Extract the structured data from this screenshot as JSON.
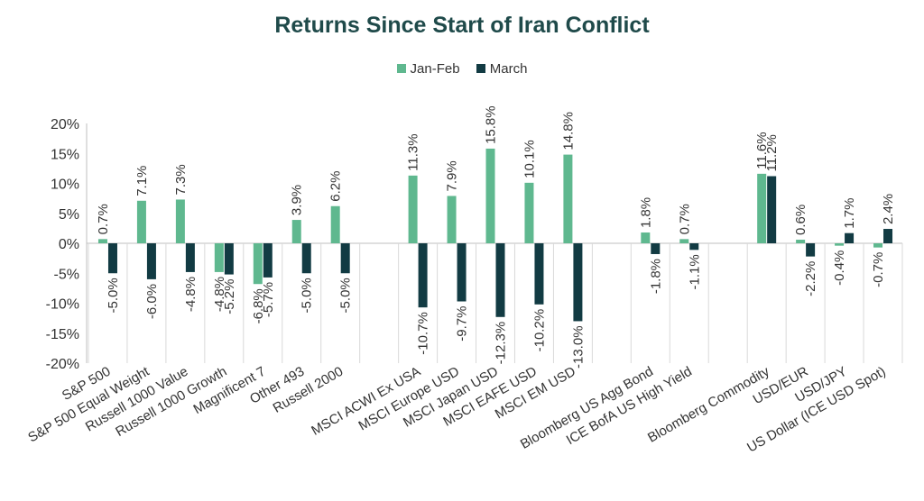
{
  "chart_data": {
    "type": "bar",
    "title": "Returns Since Start of Iran Conflict",
    "xlabel": "",
    "ylabel": "",
    "ylim": [
      -20,
      20
    ],
    "yticks": [
      20,
      15,
      10,
      5,
      0,
      -5,
      -10,
      -15,
      -20
    ],
    "ytick_labels": [
      "20%",
      "15%",
      "10%",
      "5%",
      "0%",
      "-5%",
      "-10%",
      "-15%",
      "-20%"
    ],
    "grid": false,
    "legend_position": "top-center",
    "categories": [
      "S&P 500",
      "S&P 500 Equal Weight",
      "Russell 1000 Value",
      "Russell 1000 Growth",
      "Magnificent 7",
      "Other 493",
      "Russell 2000",
      "",
      "MSCI ACWI Ex USA",
      "MSCI Europe USD",
      "MSCI Japan USD",
      "MSCI EAFE USD",
      "MSCI EM USD",
      "",
      "Bloomberg US Agg Bond",
      "ICE BofA US High Yield",
      "",
      "Bloomberg Commodity",
      "USD/EUR",
      "USD/JPY",
      "US Dollar (ICE USD Spot)"
    ],
    "series": [
      {
        "name": "Jan-Feb",
        "color": "#5fb88f",
        "values": [
          0.7,
          7.1,
          7.3,
          -4.8,
          -6.8,
          3.9,
          6.2,
          null,
          11.3,
          7.9,
          15.8,
          10.1,
          14.8,
          null,
          1.8,
          0.7,
          null,
          11.6,
          0.6,
          -0.4,
          -0.7
        ],
        "labels": [
          "0.7%",
          "7.1%",
          "7.3%",
          "-4.8%",
          "-6.8%",
          "3.9%",
          "6.2%",
          "",
          "11.3%",
          "7.9%",
          "15.8%",
          "10.1%",
          "14.8%",
          "",
          "1.8%",
          "0.7%",
          "",
          "11.6%",
          "0.6%",
          "-0.4%",
          "-0.7%"
        ]
      },
      {
        "name": "March",
        "color": "#123b43",
        "values": [
          -5.0,
          -6.0,
          -4.8,
          -5.2,
          -5.7,
          -5.0,
          -5.0,
          null,
          -10.7,
          -9.7,
          -12.3,
          -10.2,
          -13.0,
          null,
          -1.8,
          -1.1,
          null,
          11.2,
          -2.2,
          1.7,
          2.4
        ],
        "labels": [
          "-5.0%",
          "-6.0%",
          "-4.8%",
          "-5.2%",
          "-5.7%",
          "-5.0%",
          "-5.0%",
          "",
          "-10.7%",
          "-9.7%",
          "-12.3%",
          "-10.2%",
          "-13.0%",
          "",
          "-1.8%",
          "-1.1%",
          "",
          "11.2%",
          "-2.2%",
          "1.7%",
          "2.4%"
        ]
      }
    ],
    "colors": {
      "title": "#1f4a4a",
      "axis": "#bfbfbf",
      "text": "#333333"
    }
  }
}
